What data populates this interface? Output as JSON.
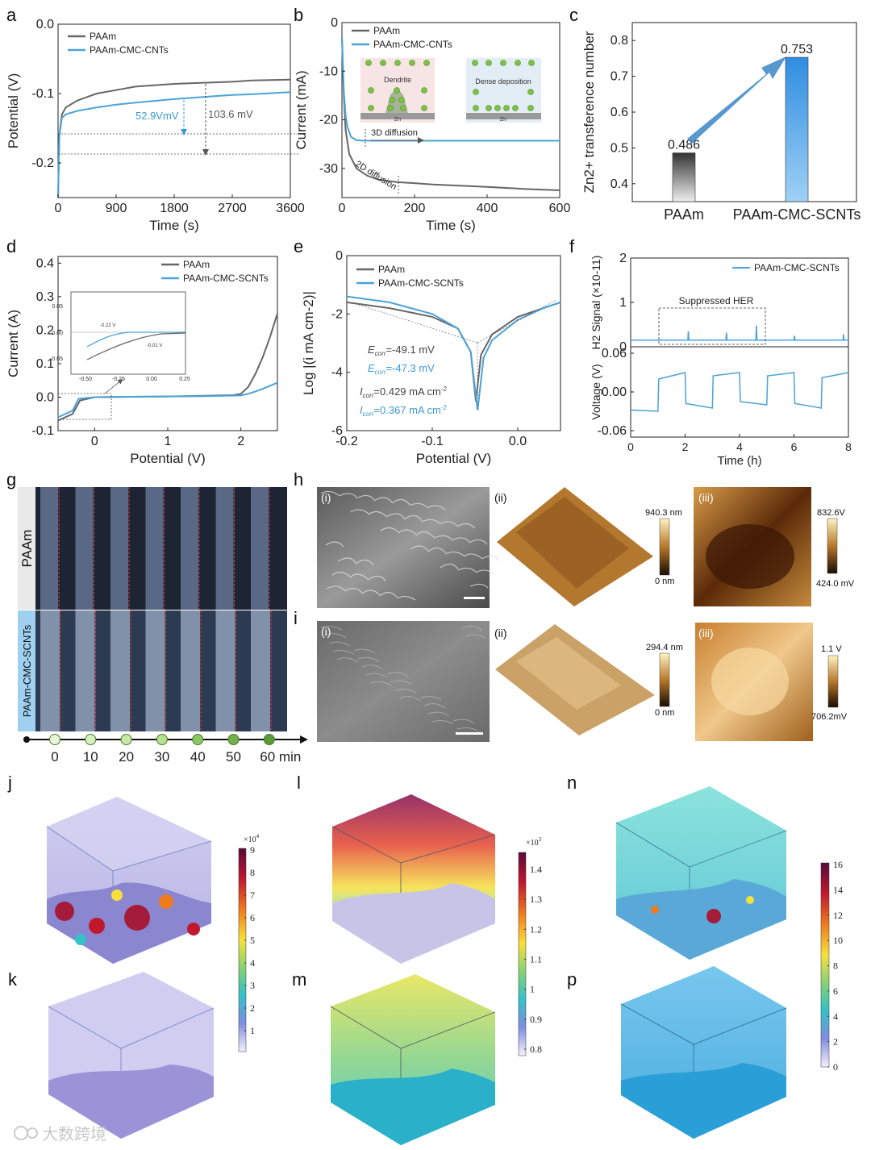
{
  "colors": {
    "paam": "#666666",
    "cmc": "#4aa3d8",
    "annot_blue": "#3a9ad6",
    "arrow": "#3a86c8"
  },
  "panel_labels": {
    "a": "a",
    "b": "b",
    "c": "c",
    "d": "d",
    "e": "e",
    "f": "f",
    "g": "g",
    "h": "h",
    "i": "i",
    "j": "j",
    "k": "k",
    "l": "l",
    "m": "m",
    "n": "n",
    "p": "p"
  },
  "chart_data": [
    {
      "id": "a",
      "type": "line",
      "xlabel": "Time (s)",
      "ylabel": "Potential (V)",
      "xlim": [
        0,
        3600
      ],
      "ylim": [
        -0.25,
        0.0
      ],
      "xticks": [
        0,
        900,
        1800,
        2700,
        3600
      ],
      "yticks": [
        0.0,
        -0.1,
        -0.2
      ],
      "xtick_labels": [
        "0",
        "900",
        "1800",
        "2700",
        "3600"
      ],
      "ytick_labels": [
        "0.0",
        "-0.1",
        "-0.2"
      ],
      "series": [
        {
          "name": "PAAm",
          "color": "#666666",
          "x": [
            0,
            20,
            60,
            120,
            300,
            600,
            900,
            1200,
            1800,
            2400,
            2700,
            3000,
            3600
          ],
          "y": [
            -0.25,
            -0.16,
            -0.13,
            -0.12,
            -0.11,
            -0.1,
            -0.095,
            -0.09,
            -0.086,
            -0.084,
            -0.083,
            -0.081,
            -0.08
          ]
        },
        {
          "name": "PAAm-CMC-CNTs",
          "color": "#4aa3d8",
          "x": [
            0,
            20,
            60,
            120,
            300,
            600,
            900,
            1200,
            1800,
            2400,
            2700,
            3000,
            3600
          ],
          "y": [
            -0.25,
            -0.16,
            -0.135,
            -0.13,
            -0.125,
            -0.12,
            -0.116,
            -0.113,
            -0.108,
            -0.104,
            -0.102,
            -0.101,
            -0.098
          ]
        }
      ],
      "annotations": [
        "52.9VmV",
        "103.6 mV"
      ]
    },
    {
      "id": "b",
      "type": "line",
      "xlabel": "Time (s)",
      "ylabel": "Current (mA)",
      "xlim": [
        0,
        600
      ],
      "ylim": [
        -36,
        0
      ],
      "xticks": [
        0,
        200,
        400,
        600
      ],
      "yticks": [
        0,
        -10,
        -20,
        -30
      ],
      "xtick_labels": [
        "0",
        "200",
        "400",
        "600"
      ],
      "ytick_labels": [
        "0",
        "-10",
        "-20",
        "-30"
      ],
      "series": [
        {
          "name": "PAAm",
          "color": "#666666",
          "x": [
            0,
            5,
            10,
            20,
            40,
            70,
            100,
            150,
            250,
            400,
            500,
            600
          ],
          "y": [
            -3,
            -15,
            -22,
            -27,
            -30,
            -31.5,
            -32.3,
            -32.8,
            -33.3,
            -33.8,
            -34.2,
            -34.5
          ]
        },
        {
          "name": "PAAm-CMC-CNTs",
          "color": "#4aa3d8",
          "x": [
            0,
            5,
            10,
            15,
            25,
            40,
            60,
            100,
            200,
            400,
            600
          ],
          "y": [
            -3,
            -14,
            -19,
            -21.5,
            -23.5,
            -24.2,
            -24.3,
            -24.3,
            -24.3,
            -24.3,
            -24.3
          ]
        }
      ],
      "annotations": [
        "3D diffusion",
        "2D diffusion",
        "Dendrite",
        "Zn",
        "Dense deposition",
        "Zn"
      ]
    },
    {
      "id": "c",
      "type": "bar",
      "ylabel": "Zn2+ transference number",
      "ylim": [
        0.35,
        0.85
      ],
      "yticks": [
        0.4,
        0.5,
        0.6,
        0.7,
        0.8
      ],
      "ytick_labels": [
        "0.4",
        "0.5",
        "0.6",
        "0.7",
        "0.8"
      ],
      "categories": [
        "PAAm",
        "PAAm-CMC-SCNTs"
      ],
      "values": [
        0.486,
        0.753
      ],
      "value_labels": [
        "0.486",
        "0.753"
      ]
    },
    {
      "id": "d",
      "type": "line",
      "xlabel": "Potential (V)",
      "ylabel": "Current (A)",
      "xlim": [
        -0.5,
        2.5
      ],
      "ylim": [
        -0.1,
        0.42
      ],
      "xticks": [
        0,
        1,
        2
      ],
      "yticks": [
        -0.1,
        0.0,
        0.1,
        0.2,
        0.3,
        0.4
      ],
      "xtick_labels": [
        "0",
        "1",
        "2"
      ],
      "ytick_labels": [
        "-0.1",
        "0.0",
        "0.1",
        "0.2",
        "0.3",
        "0.4"
      ],
      "series": [
        {
          "name": "PAAm",
          "color": "#666666",
          "x": [
            -0.5,
            -0.3,
            -0.2,
            0,
            0.5,
            1.0,
            1.5,
            1.9,
            2.0,
            2.1,
            2.2,
            2.3,
            2.4,
            2.5
          ],
          "y": [
            -0.07,
            -0.05,
            -0.01,
            0.0,
            0.001,
            0.002,
            0.004,
            0.006,
            0.01,
            0.03,
            0.07,
            0.12,
            0.18,
            0.25
          ]
        },
        {
          "name": "PAAm-CMC-SCNTs",
          "color": "#4aa3d8",
          "x": [
            -0.5,
            -0.3,
            -0.22,
            0,
            0.5,
            1.0,
            1.5,
            2.0,
            2.1,
            2.2,
            2.3,
            2.4,
            2.5
          ],
          "y": [
            -0.06,
            -0.04,
            -0.005,
            0.0,
            0.001,
            0.002,
            0.003,
            0.005,
            0.01,
            0.017,
            0.025,
            0.034,
            0.043
          ]
        }
      ],
      "inset": {
        "xlim": [
          -0.5,
          0.25
        ],
        "ylim": [
          -0.08,
          0.07
        ],
        "xtick_labels": [
          "-0.50",
          "-0.25",
          "0.00",
          "0.25"
        ],
        "ytick_labels": [
          "0.05",
          "0.00",
          "-0.05"
        ],
        "annotations": [
          "-0.22 V",
          "-0.01 V"
        ]
      }
    },
    {
      "id": "e",
      "type": "line",
      "xlabel": "Potential (V)",
      "ylabel": "Log |(i mA cm-2)|",
      "xlim": [
        -0.2,
        0.05
      ],
      "ylim": [
        -6,
        0
      ],
      "xticks": [
        -0.2,
        -0.1,
        0.0
      ],
      "yticks": [
        0,
        -2,
        -4,
        -6
      ],
      "xtick_labels": [
        "-0.2",
        "-0.1",
        "0.0"
      ],
      "ytick_labels": [
        "0",
        "-2",
        "-4",
        "-6"
      ],
      "series": [
        {
          "name": "PAAm",
          "color": "#666666",
          "x": [
            -0.2,
            -0.15,
            -0.1,
            -0.07,
            -0.055,
            -0.049,
            -0.043,
            -0.03,
            0.0,
            0.03,
            0.05
          ],
          "y": [
            -1.6,
            -1.8,
            -2.1,
            -2.5,
            -3.3,
            -5.0,
            -3.4,
            -2.7,
            -2.1,
            -1.8,
            -1.6
          ]
        },
        {
          "name": "PAAm-CMC-SCNTs",
          "color": "#4aa3d8",
          "x": [
            -0.2,
            -0.15,
            -0.1,
            -0.07,
            -0.055,
            -0.047,
            -0.04,
            -0.03,
            0.0,
            0.03,
            0.05
          ],
          "y": [
            -1.4,
            -1.6,
            -2.0,
            -2.5,
            -3.3,
            -5.3,
            -3.5,
            -2.9,
            -2.2,
            -1.8,
            -1.6
          ]
        }
      ],
      "annotations": [
        "E",
        "corr",
        "=-49.1 mV",
        "E",
        "corr",
        "=-47.3 mV",
        "I",
        "corr",
        "=0.429 mA cm",
        "-2",
        "I",
        "corr",
        "=0.367 mA cm",
        "-2"
      ]
    },
    {
      "id": "f",
      "type": "line",
      "xlabel": "Time (h)",
      "ylabel_top": "H2 Signal (×10-11)",
      "ylabel_bottom": "Voltage (V)",
      "xlim": [
        0,
        8
      ],
      "xticks": [
        0,
        2,
        4,
        6,
        8
      ],
      "xtick_labels": [
        "0",
        "2",
        "4",
        "6",
        "8"
      ],
      "top": {
        "ylim": [
          0,
          2
        ],
        "yticks": [
          0,
          1,
          2
        ],
        "ytick_labels": [
          "0",
          "1",
          "2"
        ],
        "series": [
          {
            "name": "PAAm-CMC-SCNTs",
            "color": "#4aa3d8",
            "x": [
              0,
              2.1,
              2.12,
              2.14,
              3.5,
              3.52,
              3.54,
              4.6,
              4.62,
              4.64,
              6,
              6.02,
              6.04,
              7.8,
              7.82,
              7.84,
              8
            ],
            "y": [
              0.15,
              0.15,
              0.35,
              0.15,
              0.15,
              0.32,
              0.15,
              0.15,
              0.48,
              0.15,
              0.15,
              0.25,
              0.15,
              0.15,
              0.28,
              0.15,
              0.15
            ]
          }
        ],
        "annotation": "Suppressed HER"
      },
      "bottom": {
        "ylim": [
          -0.07,
          0.07
        ],
        "yticks": [
          0.06,
          0.0,
          -0.06
        ],
        "ytick_labels": [
          "0.06",
          "0.00",
          "-0.06"
        ],
        "x": [
          0,
          1,
          1.03,
          2,
          2.03,
          3,
          3.03,
          4,
          4.03,
          5,
          5.03,
          6,
          6.03,
          7,
          7.03,
          8
        ],
        "y": [
          -0.028,
          -0.03,
          0.02,
          0.03,
          -0.018,
          -0.025,
          0.025,
          0.03,
          -0.015,
          -0.02,
          0.025,
          0.03,
          -0.018,
          -0.025,
          0.022,
          0.03
        ]
      }
    }
  ],
  "panel_g": {
    "row_labels": [
      "PAAm",
      "PAAm-CMC-SCNTs"
    ],
    "timeline": [
      "0",
      "10",
      "20",
      "30",
      "40",
      "50",
      "60 min"
    ]
  },
  "panel_h": {
    "sub_labels": [
      "(i)",
      "(ii)",
      "(iii)"
    ],
    "afm_scale": [
      "940.3 nm",
      "0 nm"
    ],
    "kpfm_scale": [
      "832.6V",
      "424.0 mV"
    ]
  },
  "panel_i": {
    "sub_labels": [
      "(i)",
      "(ii)",
      "(iii)"
    ],
    "afm_scale": [
      "294.4 nm",
      "0 nm"
    ],
    "kpfm_scale": [
      "1.1 V",
      "706.2mV"
    ]
  },
  "colorbars": {
    "j_exp": "×10",
    "j_exp_power": "4",
    "j": [
      "9",
      "8",
      "7",
      "6",
      "5",
      "4",
      "3",
      "2",
      "1"
    ],
    "l_exp": "×10",
    "l_exp_power": "3",
    "l": [
      "1.4",
      "1.3",
      "1.2",
      "1.1",
      "1",
      "0.9",
      "0.8"
    ],
    "n": [
      "16",
      "14",
      "12",
      "10",
      "8",
      "6",
      "4",
      "2",
      "0"
    ]
  },
  "watermark": "大数跨境"
}
